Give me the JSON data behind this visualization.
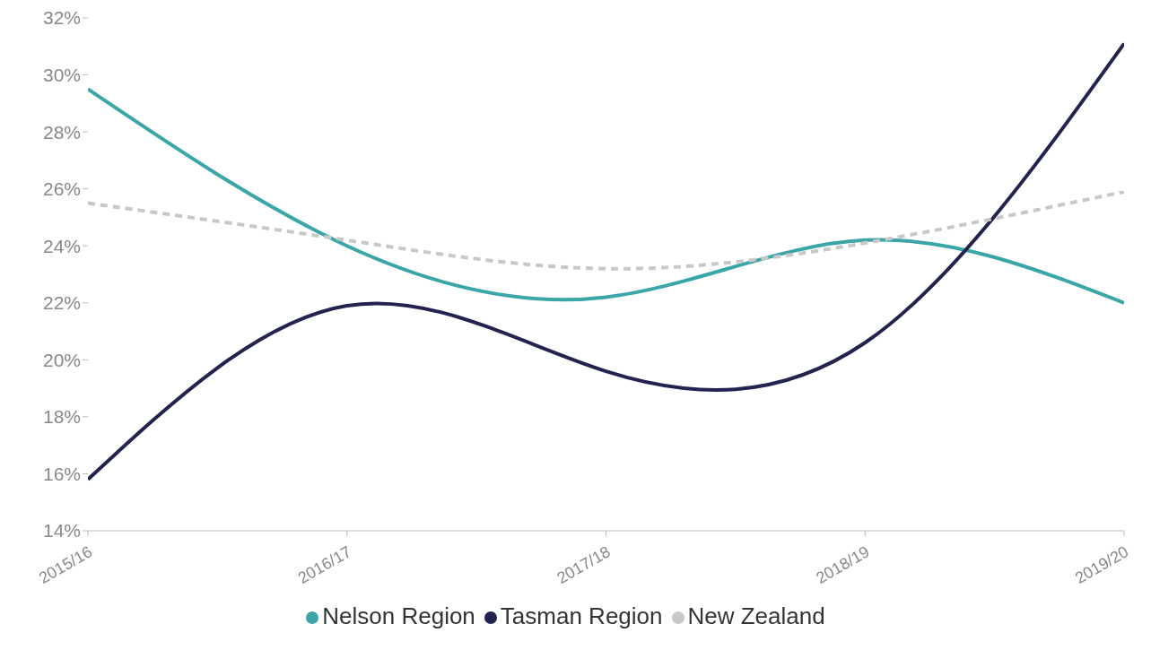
{
  "chart_data": {
    "type": "line",
    "categories": [
      "2015/16",
      "2016/17",
      "2017/18",
      "2018/19",
      "2019/20"
    ],
    "series": [
      {
        "name": "Nelson Region",
        "color": "#3aa6a8",
        "values": [
          29.5,
          24.0,
          22.2,
          24.2,
          22.0
        ]
      },
      {
        "name": "Tasman Region",
        "color": "#22234f",
        "values": [
          15.8,
          21.9,
          19.6,
          20.6,
          31.1
        ]
      },
      {
        "name": "New Zealand",
        "color": "#c8c8c8",
        "line_style": "dashed",
        "values": [
          25.5,
          24.2,
          23.2,
          24.1,
          25.9
        ]
      }
    ],
    "ylim": [
      14,
      32
    ],
    "yticks": [
      {
        "value": 14,
        "label": "14%"
      },
      {
        "value": 16,
        "label": "16%"
      },
      {
        "value": 18,
        "label": "18%"
      },
      {
        "value": 20,
        "label": "20%"
      },
      {
        "value": 22,
        "label": "22%"
      },
      {
        "value": 24,
        "label": "24%"
      },
      {
        "value": 26,
        "label": "26%"
      },
      {
        "value": 28,
        "label": "28%"
      },
      {
        "value": 30,
        "label": "30%"
      },
      {
        "value": 32,
        "label": "32%"
      }
    ],
    "grid": false,
    "legend": "bottom",
    "marker": "none",
    "line_style": "solid"
  }
}
